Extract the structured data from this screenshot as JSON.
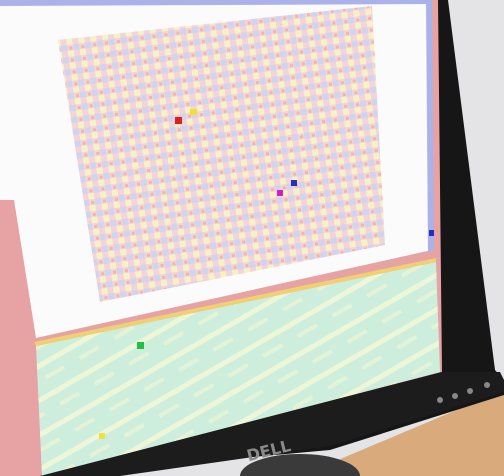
{
  "logo": "DELL"
}
